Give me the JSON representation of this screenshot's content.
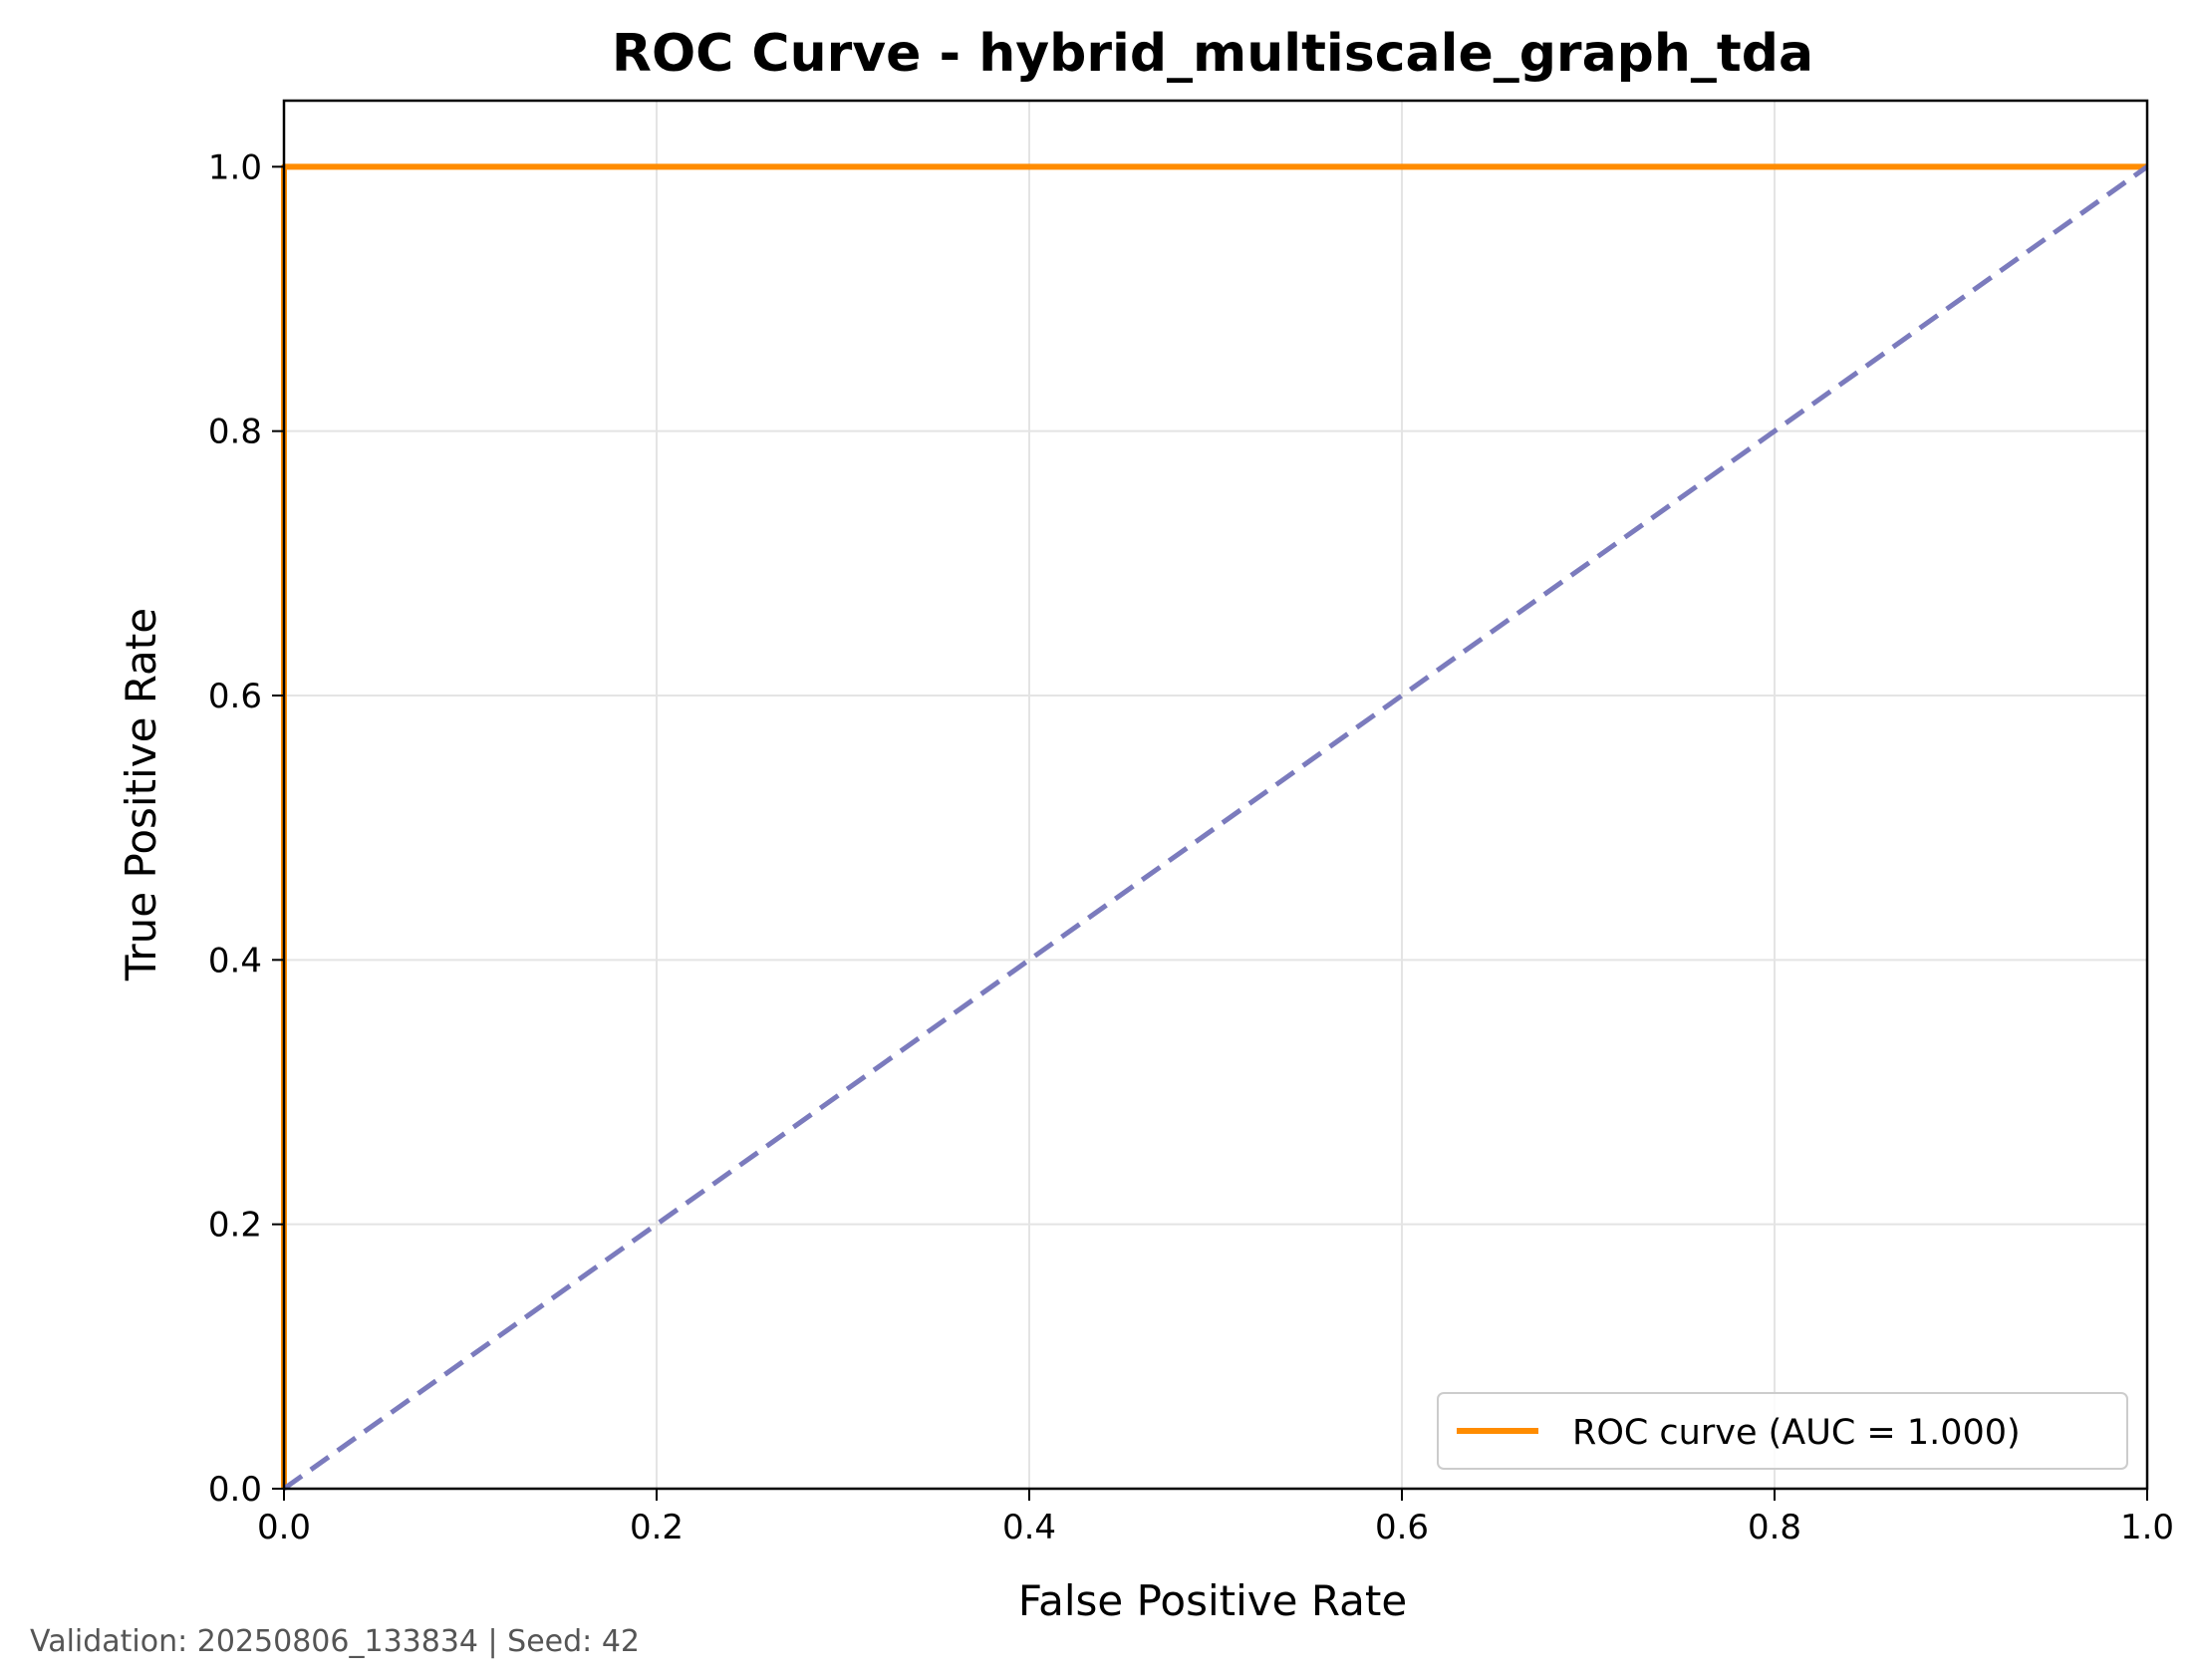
{
  "chart_data": {
    "type": "line",
    "title": "ROC Curve - hybrid_multiscale_graph_tda",
    "xlabel": "False Positive Rate",
    "ylabel": "True Positive Rate",
    "xlim": [
      0.0,
      1.0
    ],
    "ylim": [
      0.0,
      1.05
    ],
    "xticks": [
      0.0,
      0.2,
      0.4,
      0.6,
      0.8,
      1.0
    ],
    "yticks": [
      0.0,
      0.2,
      0.4,
      0.6,
      0.8,
      1.0
    ],
    "xtick_labels": [
      "0.0",
      "0.2",
      "0.4",
      "0.6",
      "0.8",
      "1.0"
    ],
    "ytick_labels": [
      "0.0",
      "0.2",
      "0.4",
      "0.6",
      "0.8",
      "1.0"
    ],
    "grid": true,
    "legend_position": "lower-right",
    "series": [
      {
        "name": "ROC curve (AUC = 1.000)",
        "color": "#ff8c00",
        "style": "solid",
        "x": [
          0.0,
          0.0,
          1.0
        ],
        "y": [
          0.0,
          1.0,
          1.0
        ]
      },
      {
        "color": "#7b7bbd",
        "style": "dashed",
        "x": [
          0.0,
          1.0
        ],
        "y": [
          0.0,
          1.0
        ]
      }
    ]
  },
  "footer": "Validation: 20250806_133834 | Seed: 42"
}
